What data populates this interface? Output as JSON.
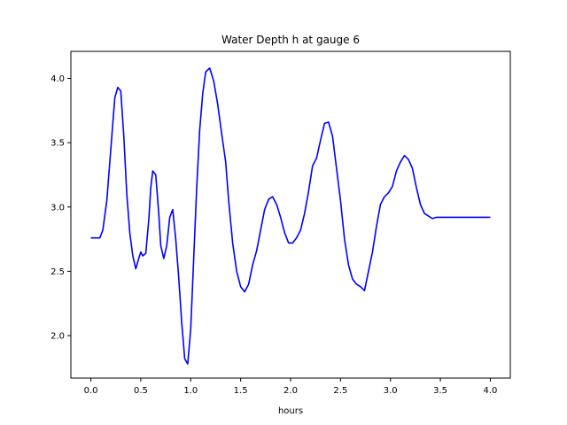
{
  "chart_data": {
    "type": "line",
    "title": "Water Depth h at gauge 6",
    "xlabel": "hours",
    "ylabel": "",
    "xlim": [
      -0.2,
      4.2
    ],
    "ylim": [
      1.67,
      4.21
    ],
    "xticks": [
      0.0,
      0.5,
      1.0,
      1.5,
      2.0,
      2.5,
      3.0,
      3.5,
      4.0
    ],
    "xtick_labels": [
      "0.0",
      "0.5",
      "1.0",
      "1.5",
      "2.0",
      "2.5",
      "3.0",
      "3.5",
      "4.0"
    ],
    "yticks": [
      2.0,
      2.5,
      3.0,
      3.5,
      4.0
    ],
    "ytick_labels": [
      "2.0",
      "2.5",
      "3.0",
      "3.5",
      "4.0"
    ],
    "grid": false,
    "colors": {
      "line": "#0000ff",
      "axes": "#000000",
      "background": "#ffffff"
    },
    "series": [
      {
        "x": [
          0.0,
          0.04,
          0.09,
          0.12,
          0.16,
          0.2,
          0.24,
          0.27,
          0.3,
          0.33,
          0.36,
          0.39,
          0.42,
          0.45,
          0.48,
          0.5,
          0.52,
          0.55,
          0.58,
          0.6,
          0.62,
          0.65,
          0.68,
          0.7,
          0.73,
          0.76,
          0.79,
          0.82,
          0.85,
          0.88,
          0.91,
          0.94,
          0.97,
          1.0,
          1.03,
          1.06,
          1.09,
          1.12,
          1.15,
          1.19,
          1.23,
          1.27,
          1.31,
          1.35,
          1.38,
          1.42,
          1.46,
          1.5,
          1.54,
          1.58,
          1.62,
          1.66,
          1.7,
          1.74,
          1.78,
          1.82,
          1.86,
          1.9,
          1.94,
          1.98,
          2.02,
          2.06,
          2.1,
          2.14,
          2.18,
          2.22,
          2.26,
          2.3,
          2.34,
          2.38,
          2.42,
          2.46,
          2.5,
          2.54,
          2.58,
          2.62,
          2.66,
          2.7,
          2.74,
          2.78,
          2.82,
          2.86,
          2.9,
          2.94,
          2.98,
          3.02,
          3.06,
          3.1,
          3.14,
          3.18,
          3.22,
          3.26,
          3.3,
          3.34,
          3.38,
          3.42,
          3.46,
          3.5,
          3.54,
          3.58,
          3.62,
          3.66,
          3.7,
          3.74,
          3.78,
          3.82,
          3.86,
          3.9,
          3.94,
          3.98,
          4.0
        ],
        "y": [
          2.76,
          2.76,
          2.76,
          2.82,
          3.05,
          3.45,
          3.85,
          3.93,
          3.9,
          3.55,
          3.1,
          2.8,
          2.62,
          2.52,
          2.6,
          2.65,
          2.62,
          2.64,
          2.9,
          3.15,
          3.28,
          3.25,
          2.95,
          2.7,
          2.6,
          2.7,
          2.92,
          2.98,
          2.75,
          2.45,
          2.1,
          1.82,
          1.78,
          2.05,
          2.6,
          3.15,
          3.6,
          3.88,
          4.05,
          4.08,
          3.98,
          3.8,
          3.57,
          3.35,
          3.05,
          2.72,
          2.5,
          2.38,
          2.34,
          2.4,
          2.55,
          2.66,
          2.82,
          2.98,
          3.06,
          3.08,
          3.02,
          2.92,
          2.8,
          2.72,
          2.72,
          2.76,
          2.82,
          2.95,
          3.12,
          3.32,
          3.38,
          3.52,
          3.65,
          3.66,
          3.55,
          3.3,
          3.05,
          2.75,
          2.55,
          2.44,
          2.4,
          2.38,
          2.35,
          2.5,
          2.65,
          2.85,
          3.02,
          3.08,
          3.11,
          3.16,
          3.28,
          3.35,
          3.4,
          3.37,
          3.3,
          3.15,
          3.02,
          2.95,
          2.93,
          2.91,
          2.92,
          2.92,
          2.92,
          2.92,
          2.92,
          2.92,
          2.92,
          2.92,
          2.92,
          2.92,
          2.92,
          2.92,
          2.92,
          2.92,
          2.92
        ]
      }
    ]
  }
}
